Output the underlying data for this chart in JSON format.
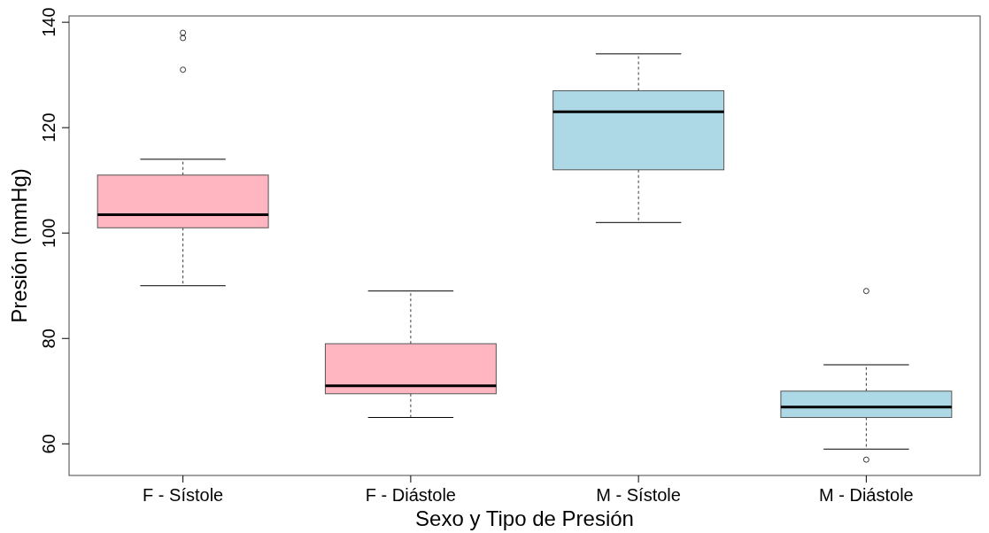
{
  "chart_data": {
    "type": "box",
    "xlabel": "Sexo y Tipo de Presión",
    "ylabel": "Presión (mmHg)",
    "categories": [
      "F - Sístole",
      "F - Diástole",
      "M - Sístole",
      "M - Diástole"
    ],
    "colors": [
      "#ffb6c1",
      "#ffb6c1",
      "#add8e6",
      "#add8e6"
    ],
    "boxes": [
      {
        "low": 90,
        "q1": 101,
        "median": 103.5,
        "q3": 111,
        "high": 114,
        "outliers": [
          138,
          137,
          131
        ]
      },
      {
        "low": 65,
        "q1": 69.5,
        "median": 71,
        "q3": 79,
        "high": 89
      },
      {
        "low": 102,
        "q1": 112,
        "median": 123,
        "q3": 127,
        "high": 134
      },
      {
        "low": 59,
        "q1": 65,
        "median": 67,
        "q3": 70,
        "high": 75,
        "outliers": [
          89,
          57
        ]
      }
    ],
    "ylim": [
      54,
      141.2
    ],
    "yticks": [
      60,
      80,
      100,
      120,
      140
    ],
    "grid": false,
    "line_style": "dashed"
  }
}
